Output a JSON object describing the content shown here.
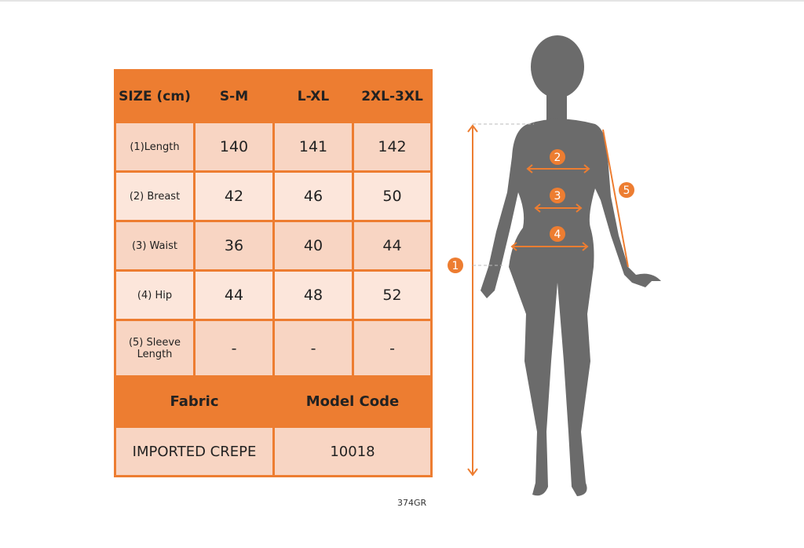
{
  "table": {
    "header": [
      "SIZE (cm)",
      "S-M",
      "L-XL",
      "2XL-3XL"
    ],
    "rows": [
      {
        "label": "(1)Length",
        "values": [
          "140",
          "141",
          "142"
        ]
      },
      {
        "label": "(2) Breast",
        "values": [
          "42",
          "46",
          "50"
        ]
      },
      {
        "label": "(3) Waist",
        "values": [
          "36",
          "40",
          "44"
        ]
      },
      {
        "label": "(4) Hip",
        "values": [
          "44",
          "48",
          "52"
        ]
      },
      {
        "label": "(5) Sleeve Length",
        "values": [
          "-",
          "-",
          "-"
        ]
      }
    ],
    "fabric_label": "Fabric",
    "model_code_label": "Model Code",
    "fabric_value": "IMPORTED CREPE",
    "model_code_value": "10018"
  },
  "product_code": "374GR",
  "markers": [
    "1",
    "2",
    "3",
    "4",
    "5"
  ],
  "colors": {
    "accent": "#ED7D31",
    "silhouette": "#6B6B6B"
  }
}
